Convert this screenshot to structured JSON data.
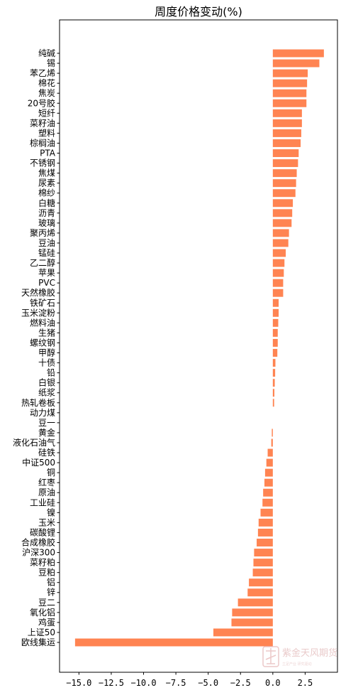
{
  "chart_data": {
    "type": "bar",
    "orientation": "horizontal",
    "title": "周度价格变动(%)",
    "bar_color": "#FF8452",
    "xlim": [
      -16.5,
      5.0
    ],
    "xticks": [
      -15.0,
      -12.5,
      -10.0,
      -7.5,
      -5.0,
      -2.5,
      0.0,
      2.5
    ],
    "xtick_labels": [
      "−15.0",
      "−12.5",
      "−10.0",
      "−7.5",
      "−5.0",
      "−2.5",
      "0.0",
      "2.5"
    ],
    "categories": [
      "纯碱",
      "锡",
      "苯乙烯",
      "棉花",
      "焦炭",
      "20号胶",
      "短纤",
      "菜籽油",
      "塑料",
      "棕榈油",
      "PTA",
      "不锈钢",
      "焦煤",
      "尿素",
      "棉纱",
      "白糖",
      "沥青",
      "玻璃",
      "聚丙烯",
      "豆油",
      "锰硅",
      "乙二醇",
      "苹果",
      "PVC",
      "天然橡胶",
      "铁矿石",
      "玉米淀粉",
      "燃料油",
      "生猪",
      "螺纹钢",
      "甲醇",
      "十债",
      "铅",
      "白银",
      "纸浆",
      "热轧卷板",
      "动力煤",
      "豆一",
      "黄金",
      "液化石油气",
      "硅铁",
      "中证500",
      "铜",
      "红枣",
      "原油",
      "工业硅",
      "镍",
      "玉米",
      "碳酸锂",
      "合成橡胶",
      "沪深300",
      "菜籽粕",
      "豆粕",
      "铝",
      "锌",
      "豆二",
      "氧化铝",
      "鸡蛋",
      "上证50",
      "欧线集运"
    ],
    "values": [
      3.95,
      3.6,
      2.7,
      2.65,
      2.6,
      2.6,
      2.25,
      2.25,
      2.2,
      2.15,
      2.0,
      1.95,
      1.85,
      1.8,
      1.75,
      1.55,
      1.5,
      1.45,
      1.25,
      1.2,
      1.0,
      0.9,
      0.85,
      0.8,
      0.8,
      0.45,
      0.45,
      0.42,
      0.38,
      0.38,
      0.35,
      0.2,
      0.18,
      0.15,
      0.12,
      0.1,
      0.0,
      0.0,
      -0.08,
      -0.12,
      -0.4,
      -0.5,
      -0.6,
      -0.65,
      -0.75,
      -0.8,
      -0.95,
      -1.1,
      -1.15,
      -1.25,
      -1.45,
      -1.5,
      -1.55,
      -1.85,
      -1.95,
      -2.7,
      -3.15,
      -3.2,
      -4.6,
      -15.3
    ]
  },
  "watermark": {
    "seal_text": "紫金天风",
    "name": "紫金天风期货",
    "slogan": "立足产业 研究驱动"
  }
}
